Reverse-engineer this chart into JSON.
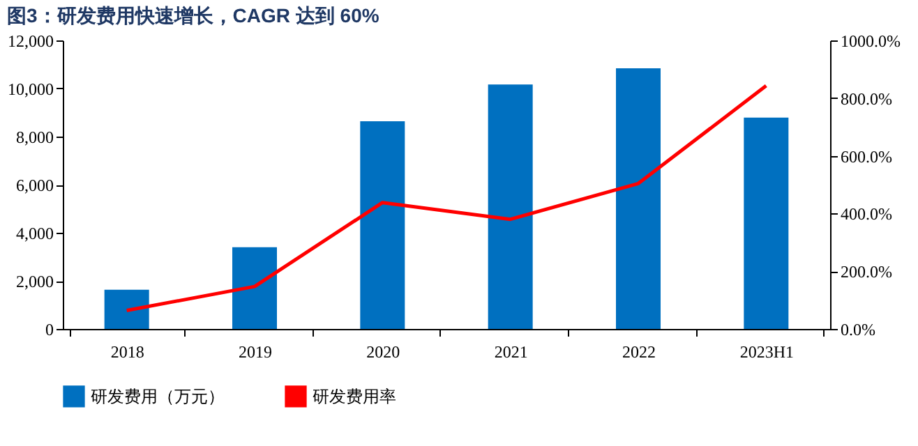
{
  "chart_data": {
    "type": "bar",
    "title": "图3：研发费用快速增长，CAGR 达到 60%",
    "categories": [
      "2018",
      "2019",
      "2020",
      "2021",
      "2022",
      "2023H1"
    ],
    "series": [
      {
        "name": "研发费用（万元）",
        "color": "#0070c0",
        "values": [
          1630,
          3400,
          8640,
          10170,
          10840,
          8790
        ]
      },
      {
        "name": "研发费用率",
        "type": "line",
        "axis": "y2",
        "color": "#ff0000",
        "values": [
          64,
          147,
          438,
          380,
          504,
          843
        ]
      }
    ],
    "ylim": [
      0,
      12000
    ],
    "yticks": [
      {
        "value": 0,
        "label": "0"
      },
      {
        "value": 2000,
        "label": "2,000"
      },
      {
        "value": 4000,
        "label": "4,000"
      },
      {
        "value": 6000,
        "label": "6,000"
      },
      {
        "value": 8000,
        "label": "8,000"
      },
      {
        "value": 10000,
        "label": "10,000"
      },
      {
        "value": 12000,
        "label": "12,000"
      }
    ],
    "y2lim": [
      0,
      1000
    ],
    "y2ticks": [
      {
        "value": 0,
        "label": "0.0%"
      },
      {
        "value": 200,
        "label": "200.0%"
      },
      {
        "value": 400,
        "label": "400.0%"
      },
      {
        "value": 600,
        "label": "600.0%"
      },
      {
        "value": 800,
        "label": "800.0%"
      },
      {
        "value": 1000,
        "label": "1000.0%"
      }
    ],
    "legend": "bottom",
    "grid": false
  }
}
